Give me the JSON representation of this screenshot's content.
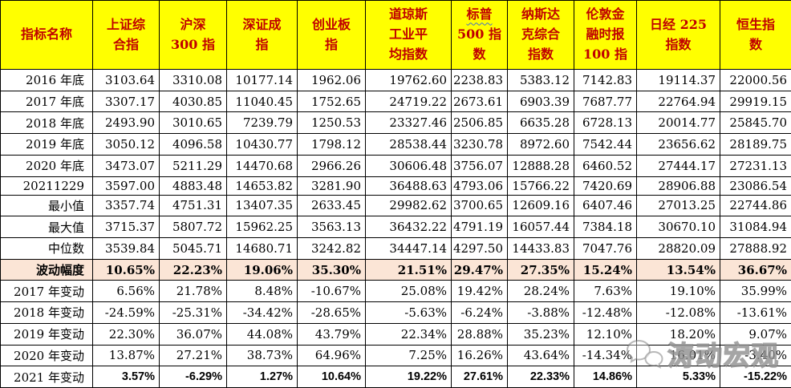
{
  "chart_data": {
    "type": "table",
    "title": "",
    "columns": [
      {
        "label": "指标名称"
      },
      {
        "label": "上证综\n合指"
      },
      {
        "label": "沪深\n300 指"
      },
      {
        "label": "深证成\n指"
      },
      {
        "label": "创业板\n指"
      },
      {
        "label": "道琼斯\n工业平\n均指数"
      },
      {
        "label": "标普\n500 指\n数",
        "wavy": "标普"
      },
      {
        "label": "纳斯达\n克综合\n指数"
      },
      {
        "label": "伦敦金\n融时报\n100 指"
      },
      {
        "label": "日经 225\n指数"
      },
      {
        "label": "恒生指\n数"
      }
    ],
    "rows": [
      {
        "label": "2016 年底",
        "values": [
          "3103.64",
          "3310.08",
          "10177.14",
          "1962.06",
          "19762.60",
          "2238.83",
          "5383.12",
          "7142.83",
          "19114.37",
          "22000.56"
        ]
      },
      {
        "label": "2017 年底",
        "values": [
          "3307.17",
          "4030.85",
          "11040.45",
          "1752.65",
          "24719.22",
          "2673.61",
          "6903.39",
          "7687.77",
          "22764.94",
          "29919.15"
        ]
      },
      {
        "label": "2018 年底",
        "values": [
          "2493.90",
          "3010.65",
          "7239.79",
          "1250.53",
          "23327.46",
          "2506.85",
          "6635.28",
          "6728.13",
          "20014.77",
          "25845.70"
        ]
      },
      {
        "label": "2019 年底",
        "values": [
          "3050.12",
          "4096.58",
          "10430.77",
          "1798.12",
          "28538.44",
          "3230.78",
          "8972.60",
          "7542.44",
          "23656.62",
          "28189.75"
        ]
      },
      {
        "label": "2020 年底",
        "values": [
          "3473.07",
          "5211.29",
          "14470.68",
          "2966.26",
          "30606.48",
          "3756.07",
          "12888.28",
          "6460.52",
          "27444.17",
          "27231.13"
        ]
      },
      {
        "label": "20211229",
        "values": [
          "3597.00",
          "4883.48",
          "14653.82",
          "3281.90",
          "36488.63",
          "4793.06",
          "15766.22",
          "7420.69",
          "28906.88",
          "23086.54"
        ]
      },
      {
        "label": "最小值",
        "values": [
          "3357.74",
          "4751.31",
          "13407.35",
          "2633.45",
          "29982.62",
          "3700.65",
          "12609.16",
          "6407.46",
          "27013.25",
          "22744.86"
        ]
      },
      {
        "label": "最大值",
        "values": [
          "3715.37",
          "5807.72",
          "15962.25",
          "3563.13",
          "36432.22",
          "4791.19",
          "16057.44",
          "7384.18",
          "30670.10",
          "31084.94"
        ]
      },
      {
        "label": "中位数",
        "values": [
          "3539.84",
          "5045.71",
          "14680.71",
          "3242.82",
          "34447.14",
          "4297.50",
          "14433.83",
          "7047.76",
          "28820.09",
          "27888.92"
        ]
      },
      {
        "label": "波动幅度",
        "highlight": true,
        "values": [
          "10.65%",
          "22.23%",
          "19.06%",
          "35.30%",
          "21.51%",
          "29.47%",
          "27.35%",
          "15.24%",
          "13.54%",
          "36.67%"
        ]
      },
      {
        "label": "2017 年变动",
        "values": [
          "6.56%",
          "21.78%",
          "8.48%",
          "-10.67%",
          "25.08%",
          "19.42%",
          "28.24%",
          "7.63%",
          "19.10%",
          "35.99%"
        ]
      },
      {
        "label": "2018 年变动",
        "values": [
          "-24.59%",
          "-25.31%",
          "-34.42%",
          "-28.65%",
          "-5.63%",
          "-6.24%",
          "-3.88%",
          "-12.48%",
          "-12.08%",
          "-13.61%"
        ]
      },
      {
        "label": "2019 年变动",
        "values": [
          "22.30%",
          "36.07%",
          "44.08%",
          "43.79%",
          "22.34%",
          "28.88%",
          "35.23%",
          "12.10%",
          "18.20%",
          "9.07%"
        ]
      },
      {
        "label": "2020 年变动",
        "values": [
          "13.87%",
          "27.21%",
          "38.73%",
          "64.96%",
          "7.25%",
          "16.26%",
          "43.64%",
          "-14.34%",
          "16.01%",
          "-3.40%"
        ]
      },
      {
        "label": "2021 年变动",
        "sans": true,
        "values": [
          "3.57%",
          "-6.29%",
          "1.27%",
          "10.64%",
          "19.22%",
          "27.61%",
          "22.33%",
          "14.86%",
          "5.33%",
          "-15.22%"
        ]
      }
    ]
  },
  "styles": {
    "header_bg": "#FFFF00",
    "header_text": "#C00000",
    "highlight_bg": "#FBE5D6",
    "border_color": "#000000",
    "squiggle_color": "#4472C4",
    "watermark_color": "#9B9B9B"
  },
  "watermark": {
    "text": "涛动宏观",
    "icon": "wechat-bubbles-icon"
  }
}
